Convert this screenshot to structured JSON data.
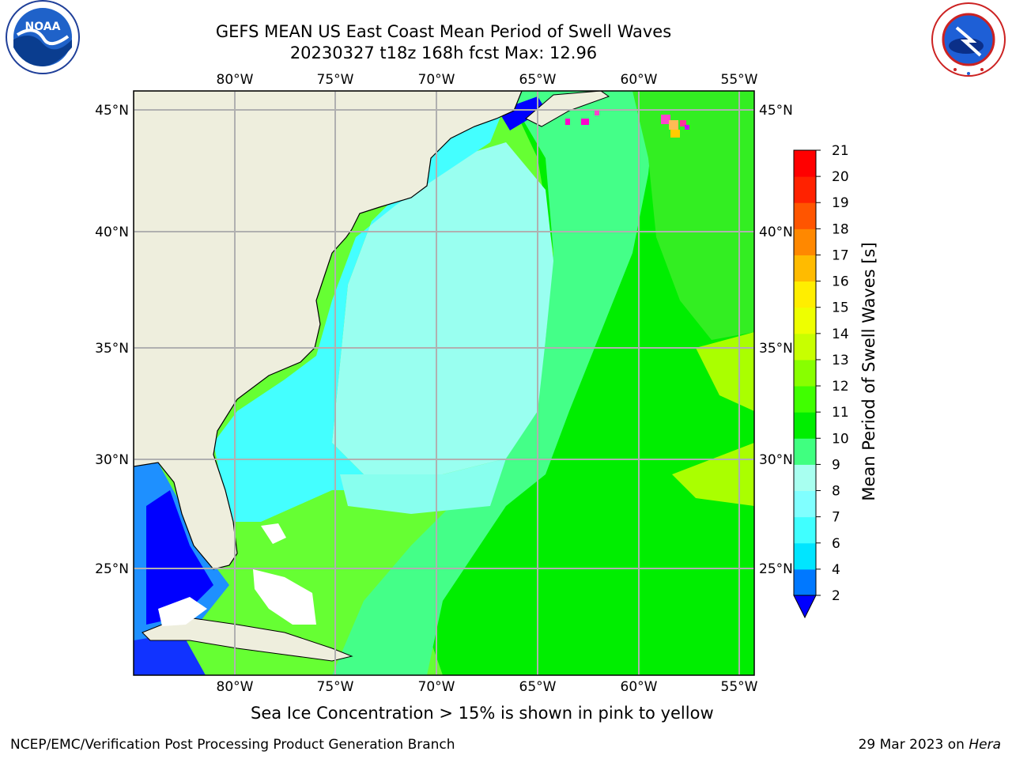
{
  "header": {
    "title_line1": "GEFS MEAN US East Coast Mean Period of Swell Waves",
    "title_line2": "20230327 t18z 168h fcst   Max: 12.96"
  },
  "logos": {
    "left": "noaa-logo",
    "left_text": "NOAA",
    "left_ring_text": "NATIONAL OCEANIC AND ATMOSPHERIC ADMINISTRATION · U.S. DEPARTMENT OF COMMERCE",
    "right": "nws-logo",
    "right_ring_text": "NATIONAL WEATHER SERVICE"
  },
  "map": {
    "lon_labels": [
      "80°W",
      "75°W",
      "70°W",
      "65°W",
      "60°W",
      "55°W"
    ],
    "lat_labels": [
      "45°N",
      "40°N",
      "35°N",
      "30°N",
      "25°N"
    ],
    "land_color": "#eeeedd",
    "grid_color": "#b0b0b0"
  },
  "colorbar": {
    "label": "Mean Period of Swell Waves [s]",
    "ticks": [
      "2",
      "4",
      "6",
      "7",
      "8",
      "9",
      "10",
      "11",
      "12",
      "13",
      "14",
      "15",
      "16",
      "17",
      "18",
      "19",
      "20",
      "21"
    ],
    "colors": [
      "#0000ff",
      "#0078ff",
      "#00e5ff",
      "#40ffff",
      "#80ffff",
      "#a8fff0",
      "#40ff80",
      "#00ee00",
      "#40ff00",
      "#88ff00",
      "#c8ff00",
      "#eeff00",
      "#ffee00",
      "#ffbb00",
      "#ff8800",
      "#ff5500",
      "#ff2200",
      "#ff0000"
    ],
    "min_arrow_color": "#0000ff"
  },
  "footer": {
    "note": "Sea Ice Concentration > 15% is shown in pink to yellow",
    "org": "NCEP/EMC/Verification Post Processing Product Generation Branch",
    "date": "29 Mar 2023 on ",
    "machine": "Hera"
  }
}
